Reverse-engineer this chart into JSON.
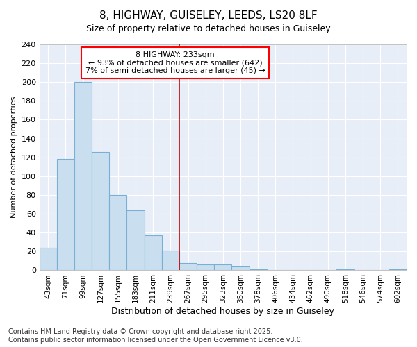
{
  "title": "8, HIGHWAY, GUISELEY, LEEDS, LS20 8LF",
  "subtitle": "Size of property relative to detached houses in Guiseley",
  "xlabel": "Distribution of detached houses by size in Guiseley",
  "ylabel": "Number of detached properties",
  "bar_color": "#c9dff0",
  "bar_edge_color": "#7aafd4",
  "background_color": "#e8eef8",
  "grid_color": "#ffffff",
  "fig_background": "#ffffff",
  "categories": [
    "43sqm",
    "71sqm",
    "99sqm",
    "127sqm",
    "155sqm",
    "183sqm",
    "211sqm",
    "239sqm",
    "267sqm",
    "295sqm",
    "323sqm",
    "350sqm",
    "378sqm",
    "406sqm",
    "434sqm",
    "462sqm",
    "490sqm",
    "518sqm",
    "546sqm",
    "574sqm",
    "602sqm"
  ],
  "values": [
    24,
    118,
    200,
    126,
    80,
    64,
    37,
    21,
    8,
    6,
    6,
    4,
    1,
    0,
    0,
    0,
    0,
    1,
    0,
    0,
    1
  ],
  "ylim": [
    0,
    240
  ],
  "yticks": [
    0,
    20,
    40,
    60,
    80,
    100,
    120,
    140,
    160,
    180,
    200,
    220,
    240
  ],
  "vline_x": 7.5,
  "vline_color": "#cc0000",
  "annotation_title": "8 HIGHWAY: 233sqm",
  "annotation_line1": "← 93% of detached houses are smaller (642)",
  "annotation_line2": "7% of semi-detached houses are larger (45) →",
  "footer1": "Contains HM Land Registry data © Crown copyright and database right 2025.",
  "footer2": "Contains public sector information licensed under the Open Government Licence v3.0.",
  "title_fontsize": 11,
  "subtitle_fontsize": 9,
  "annotation_fontsize": 8,
  "ylabel_fontsize": 8,
  "xlabel_fontsize": 9,
  "tick_fontsize": 8,
  "xtick_fontsize": 7.5,
  "footer_fontsize": 7
}
